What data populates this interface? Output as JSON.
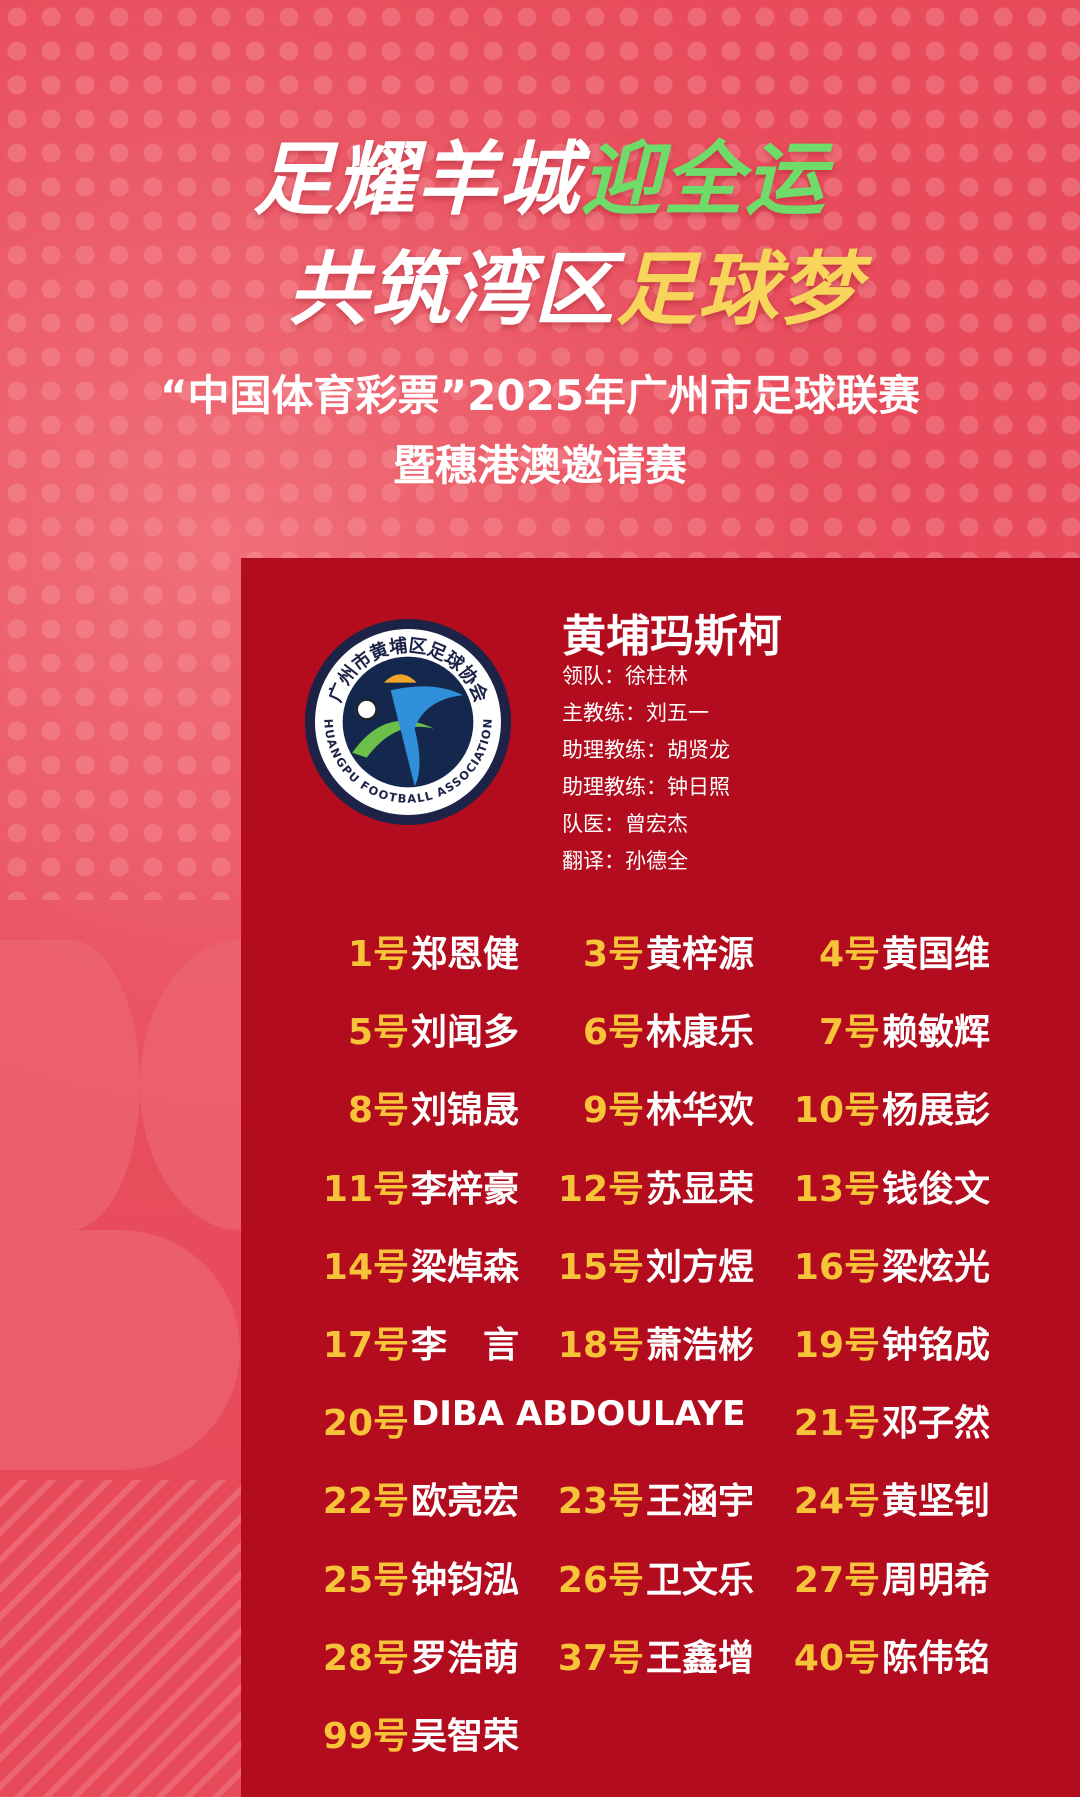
{
  "header": {
    "line1_white": "足耀羊城",
    "line1_green": "迎全运",
    "line2_white": "共筑湾区",
    "line2_yellow": "足球梦",
    "subtitle1": "“中国体育彩票”2025年广州市足球联赛",
    "subtitle2": "暨穗港澳邀请赛"
  },
  "logo": {
    "text_cn": "广州市黄埔区足球协会",
    "text_en": "HUANGPU FOOTBALL ASSOCIATION"
  },
  "team": {
    "name": "黄埔玛斯柯",
    "staff": [
      "领队：徐柱林",
      "主教练：刘五一",
      "助理教练：胡贤龙",
      "助理教练：钟日照",
      "队医：曾宏杰",
      "翻译：孙德全"
    ]
  },
  "players": [
    [
      {
        "num": "1号",
        "name": "郑恩健"
      },
      {
        "num": "3号",
        "name": "黄梓源"
      },
      {
        "num": "4号",
        "name": "黄国维"
      }
    ],
    [
      {
        "num": "5号",
        "name": "刘闻多"
      },
      {
        "num": "6号",
        "name": "林康乐"
      },
      {
        "num": "7号",
        "name": "赖敏辉"
      }
    ],
    [
      {
        "num": "8号",
        "name": "刘锦晟"
      },
      {
        "num": "9号",
        "name": "林华欢"
      },
      {
        "num": "10号",
        "name": "杨展彭"
      }
    ],
    [
      {
        "num": "11号",
        "name": "李梓豪"
      },
      {
        "num": "12号",
        "name": "苏显荣"
      },
      {
        "num": "13号",
        "name": "钱俊文"
      }
    ],
    [
      {
        "num": "14号",
        "name": "梁焯森"
      },
      {
        "num": "15号",
        "name": "刘方煜"
      },
      {
        "num": "16号",
        "name": "梁炫光"
      }
    ],
    [
      {
        "num": "17号",
        "name": "李　言"
      },
      {
        "num": "18号",
        "name": "萧浩彬"
      },
      {
        "num": "19号",
        "name": "钟铭成"
      }
    ],
    [
      {
        "num": "20号",
        "name": "DIBA ABDOULAYE"
      },
      {
        "num": "21号",
        "name": "邓子然"
      }
    ],
    [
      {
        "num": "22号",
        "name": "欧亮宏"
      },
      {
        "num": "23号",
        "name": "王涵宇"
      },
      {
        "num": "24号",
        "name": "黄坚钊"
      }
    ],
    [
      {
        "num": "25号",
        "name": "钟钧泓"
      },
      {
        "num": "26号",
        "name": "卫文乐"
      },
      {
        "num": "27号",
        "name": "周明希"
      }
    ],
    [
      {
        "num": "28号",
        "name": "罗浩萌"
      },
      {
        "num": "37号",
        "name": "王鑫增"
      },
      {
        "num": "40号",
        "name": "陈伟铭"
      }
    ],
    [
      {
        "num": "99号",
        "name": "吴智荣"
      }
    ]
  ],
  "colors": {
    "background": "#e94a5a",
    "panel": "#b30c1f",
    "number": "#f7c338",
    "green": "#6fdc6a",
    "yellow": "#f7d45a"
  }
}
